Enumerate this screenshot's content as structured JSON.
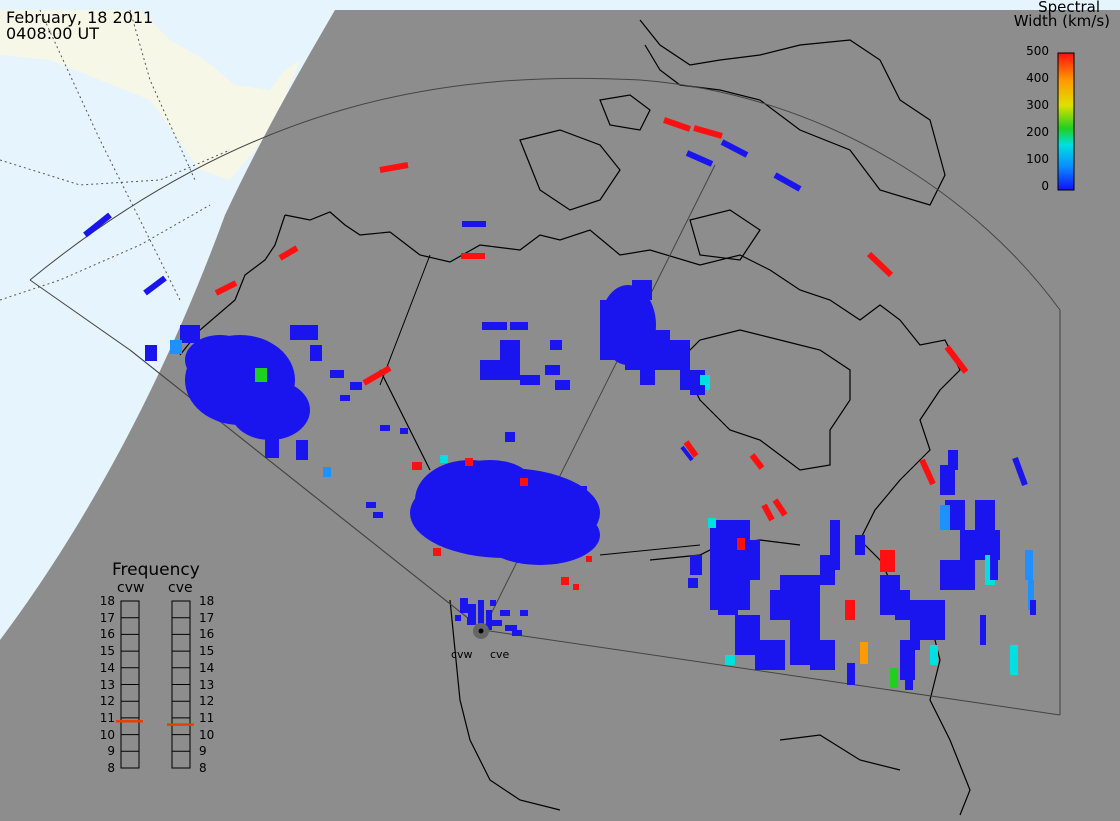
{
  "header": {
    "date": "February, 18 2011",
    "time": "0408:00 UT"
  },
  "colorbar": {
    "title_line1": "Spectral",
    "title_line2": "Width (km/s)",
    "ticks": [
      "500",
      "400",
      "300",
      "200",
      "100",
      "0"
    ],
    "range": [
      0,
      500
    ],
    "colors": [
      "#1010ff",
      "#0a8cff",
      "#00e0e0",
      "#20d020",
      "#e0e000",
      "#ff9900",
      "#ff1010"
    ]
  },
  "frequency": {
    "title": "Frequency",
    "radars": [
      "cvw",
      "cve"
    ],
    "scale": [
      "18",
      "17",
      "16",
      "15",
      "14",
      "13",
      "12",
      "11",
      "10",
      "9",
      "8"
    ],
    "range_mhz": [
      8,
      18
    ],
    "values_mhz": [
      10.8,
      10.6
    ]
  },
  "radar_labels": [
    "cvw",
    "cve"
  ],
  "colors": {
    "ocean_night": "#8d8d8d",
    "ocean_day": "#e6f4fd",
    "land_day": "#f7f7e8",
    "coast": "#000000",
    "freq_marker": "#e84000"
  }
}
